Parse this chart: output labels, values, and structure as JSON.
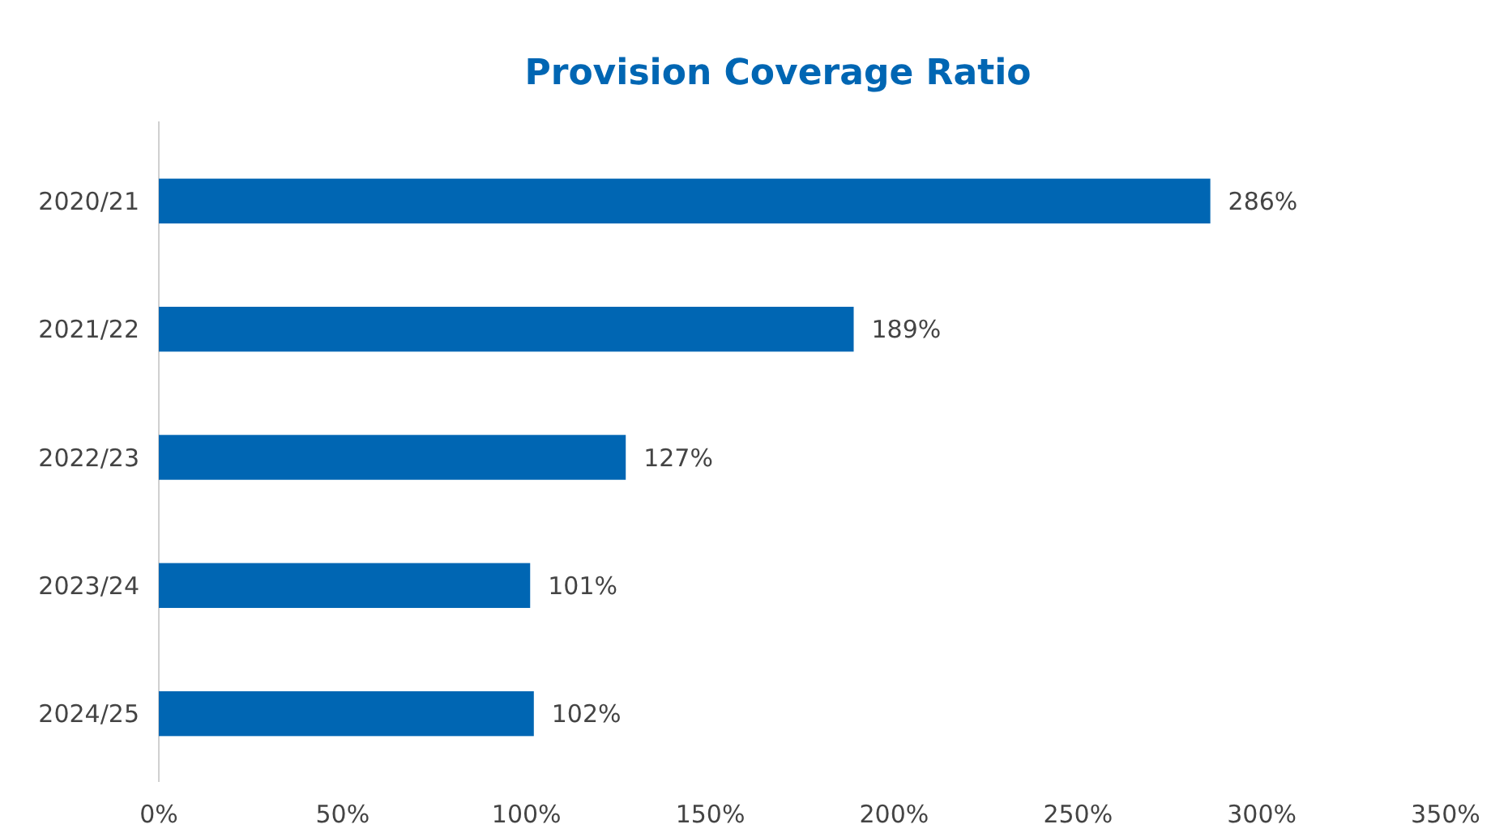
{
  "chart_data": {
    "type": "bar",
    "orientation": "horizontal",
    "title": "Provision Coverage Ratio",
    "categories": [
      "2020/21",
      "2021/22",
      "2022/23",
      "2023/24",
      "2024/25"
    ],
    "values": [
      286,
      189,
      127,
      101,
      102
    ],
    "color": "#0066b3",
    "xlim": [
      0,
      350
    ],
    "xticks": [
      {
        "value": 0,
        "label": "0%"
      },
      {
        "value": 50,
        "label": "50%"
      },
      {
        "value": 100,
        "label": "100%"
      },
      {
        "value": 150,
        "label": "150%"
      },
      {
        "value": 200,
        "label": "200%"
      },
      {
        "value": 250,
        "label": "250%"
      },
      {
        "value": 300,
        "label": "300%"
      },
      {
        "value": 350,
        "label": "350%"
      }
    ],
    "data_labels": true,
    "value_labels": [
      "286%",
      "189%",
      "127%",
      "101%",
      "102%"
    ],
    "grid": false
  }
}
